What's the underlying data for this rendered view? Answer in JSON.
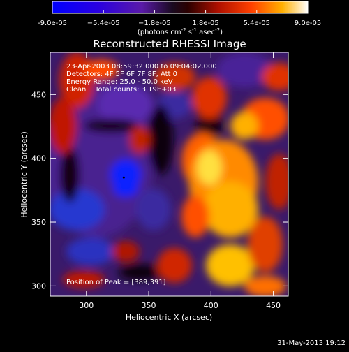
{
  "chart_data": {
    "type": "heatmap",
    "title": "Reconstructed RHESSI Image",
    "xlabel": "Heliocentric X (arcsec)",
    "ylabel": "Heliocentric Y (arcsec)",
    "xlim": [
      271,
      462
    ],
    "ylim": [
      292,
      483
    ],
    "x_ticks": [
      300,
      350,
      400,
      450
    ],
    "y_ticks": [
      300,
      350,
      400,
      450
    ],
    "colorbar": {
      "range": [
        -9e-05,
        9e-05
      ],
      "tick_values": [
        -9e-05,
        -5.4e-05,
        -1.8e-05,
        1.8e-05,
        5.4e-05,
        9e-05
      ],
      "tick_labels": [
        "-9.0e-05",
        "−5.4e-05",
        "−1.8e-05",
        "1.8e-05",
        "5.4e-05",
        "9.0e-05"
      ],
      "units_main": "(photons cm",
      "units_sup1": "-2",
      "units_mid": " s",
      "units_sup2": "-1",
      "units_end": " asec",
      "units_sup3": "-2",
      "units_close": ")"
    },
    "annotations": [
      "23-Apr-2003 08:59:32.000 to 09:04:02.000",
      "Detectors: 4F 5F 6F 7F 8F, Att 0",
      "Energy Range: 25.0 - 50.0 keV",
      "Clean    Total counts: 3.19E+03"
    ],
    "peak_label": "Position of Peak = [389,391]",
    "peak_position": [
      389,
      391
    ],
    "minimum_marker": [
      330,
      385
    ]
  },
  "footer_date": "31-May-2013 19:12"
}
